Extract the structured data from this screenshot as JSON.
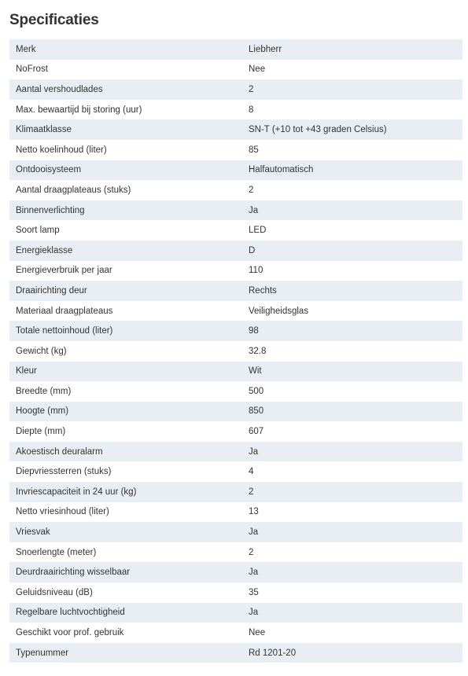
{
  "title": "Specificaties",
  "specs": [
    {
      "label": "Merk",
      "value": "Liebherr"
    },
    {
      "label": "NoFrost",
      "value": "Nee"
    },
    {
      "label": "Aantal vershoudlades",
      "value": "2"
    },
    {
      "label": "Max. bewaartijd bij storing (uur)",
      "value": "8"
    },
    {
      "label": "Klimaatklasse",
      "value": "SN-T (+10 tot +43 graden Celsius)"
    },
    {
      "label": "Netto koelinhoud (liter)",
      "value": "85"
    },
    {
      "label": "Ontdooisysteem",
      "value": "Halfautomatisch"
    },
    {
      "label": "Aantal draagplateaus (stuks)",
      "value": "2"
    },
    {
      "label": "Binnenverlichting",
      "value": "Ja"
    },
    {
      "label": "Soort lamp",
      "value": "LED"
    },
    {
      "label": "Energieklasse",
      "value": "D"
    },
    {
      "label": "Energieverbruik per jaar",
      "value": "110"
    },
    {
      "label": "Draairichting deur",
      "value": "Rechts"
    },
    {
      "label": "Materiaal draagplateaus",
      "value": "Veiligheidsglas"
    },
    {
      "label": "Totale nettoinhoud (liter)",
      "value": "98"
    },
    {
      "label": "Gewicht (kg)",
      "value": "32.8"
    },
    {
      "label": "Kleur",
      "value": "Wit"
    },
    {
      "label": "Breedte (mm)",
      "value": "500"
    },
    {
      "label": "Hoogte (mm)",
      "value": "850"
    },
    {
      "label": "Diepte (mm)",
      "value": "607"
    },
    {
      "label": "Akoestisch deuralarm",
      "value": "Ja"
    },
    {
      "label": "Diepvriessterren (stuks)",
      "value": "4"
    },
    {
      "label": "Invriescapaciteit in 24 uur (kg)",
      "value": "2"
    },
    {
      "label": "Netto vriesinhoud (liter)",
      "value": "13"
    },
    {
      "label": "Vriesvak",
      "value": "Ja"
    },
    {
      "label": "Snoerlengte (meter)",
      "value": "2"
    },
    {
      "label": "Deurdraairichting wisselbaar",
      "value": "Ja"
    },
    {
      "label": "Geluidsniveau (dB)",
      "value": "35"
    },
    {
      "label": "Regelbare luchtvochtigheid",
      "value": "Ja"
    },
    {
      "label": "Geschikt voor prof. gebruik",
      "value": "Nee"
    },
    {
      "label": "Typenummer",
      "value": "Rd 1201-20"
    }
  ]
}
